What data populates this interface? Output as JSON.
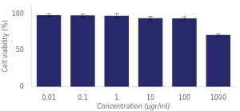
{
  "chart_data": {
    "type": "bar",
    "categories": [
      "0.01",
      "0.1",
      "1",
      "10",
      "100",
      "1000"
    ],
    "values": [
      98.5,
      98.2,
      97.8,
      94.5,
      94.2,
      71.5
    ],
    "errors": [
      2.2,
      2.0,
      3.2,
      2.2,
      2.2,
      1.5
    ],
    "color": "#27296b",
    "xlabel": "Concentration (μgr/ml)",
    "ylabel": "Cell viability (%)",
    "ylim": [
      0,
      112
    ],
    "yticks": [
      0,
      50,
      100
    ],
    "grid": false
  }
}
